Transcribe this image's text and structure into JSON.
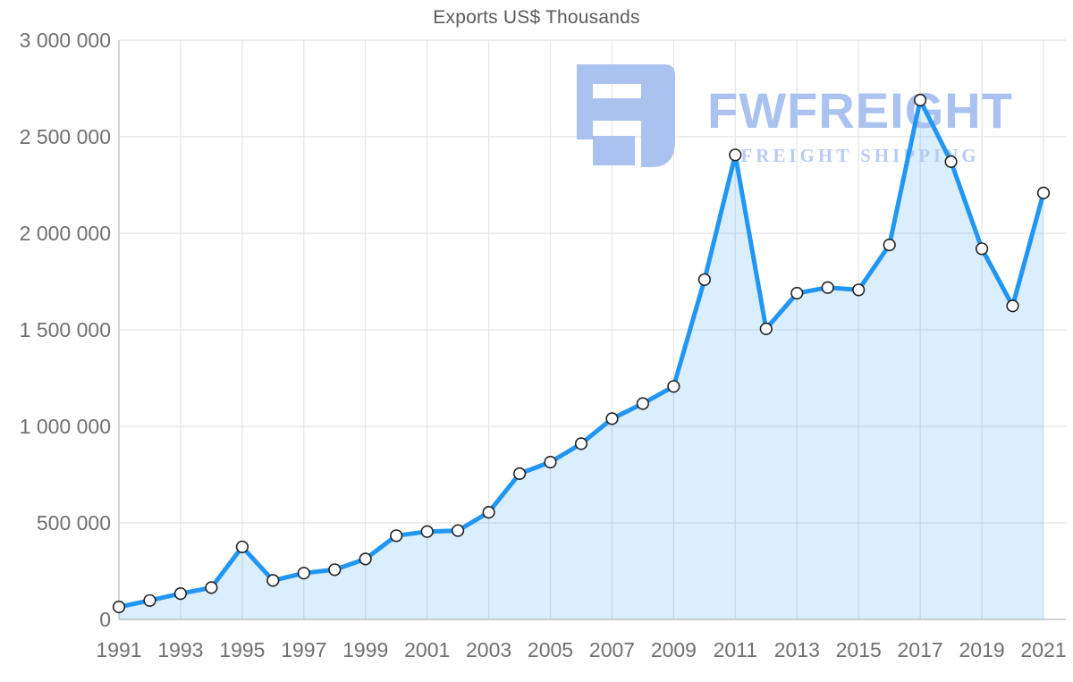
{
  "title": "Exports US$ Thousands",
  "watermark": {
    "name": "FWFREIGHT",
    "tagline": "FREIGHT SHIPPING",
    "logo_icon": "fwfreight-glyph"
  },
  "colors": {
    "line": "#2196f3",
    "area_fill": "#2196f3",
    "area_opacity": "0.16",
    "marker_fill": "#ffffff",
    "marker_stroke": "#222222",
    "grid": "#e4e4e4",
    "axis": "#c4c4c4",
    "tick_text": "#707070",
    "title_text": "#5b5b5b",
    "watermark_main": "#a9c2ef",
    "watermark_sub": "#b7cbf3"
  },
  "chart_data": {
    "type": "line",
    "title": "Exports US$ Thousands",
    "xlabel": "",
    "ylabel": "",
    "x": [
      1991,
      1992,
      1993,
      1994,
      1995,
      1996,
      1997,
      1998,
      1999,
      2000,
      2001,
      2002,
      2003,
      2004,
      2005,
      2006,
      2007,
      2008,
      2009,
      2010,
      2011,
      2012,
      2013,
      2014,
      2015,
      2016,
      2017,
      2018,
      2019,
      2020,
      2021
    ],
    "values": [
      65000,
      98000,
      134000,
      165000,
      376000,
      202000,
      240000,
      258000,
      313000,
      434000,
      455000,
      460000,
      555000,
      755000,
      815000,
      910000,
      1040000,
      1118000,
      1207000,
      1760000,
      2406000,
      1505000,
      1690000,
      1719000,
      1707000,
      1940000,
      2690000,
      2371000,
      1920000,
      1624000,
      2209000
    ],
    "xtick_labels": [
      "1991",
      "1993",
      "1995",
      "1997",
      "1999",
      "2001",
      "2003",
      "2005",
      "2007",
      "2009",
      "2011",
      "2013",
      "2015",
      "2017",
      "2019",
      "2021"
    ],
    "ytick_labels": [
      {
        "label": "0",
        "value": 0
      },
      {
        "label": "500 000",
        "value": 500000
      },
      {
        "label": "1 000 000",
        "value": 1000000
      },
      {
        "label": "1 500 000",
        "value": 1500000
      },
      {
        "label": "2 000 000",
        "value": 2000000
      },
      {
        "label": "2 500 000",
        "value": 2500000
      },
      {
        "label": "3 000 000",
        "value": 3000000
      }
    ],
    "ylim": [
      0,
      3000000
    ],
    "grid": true,
    "legend": "none",
    "marker": "circle",
    "area": true
  }
}
